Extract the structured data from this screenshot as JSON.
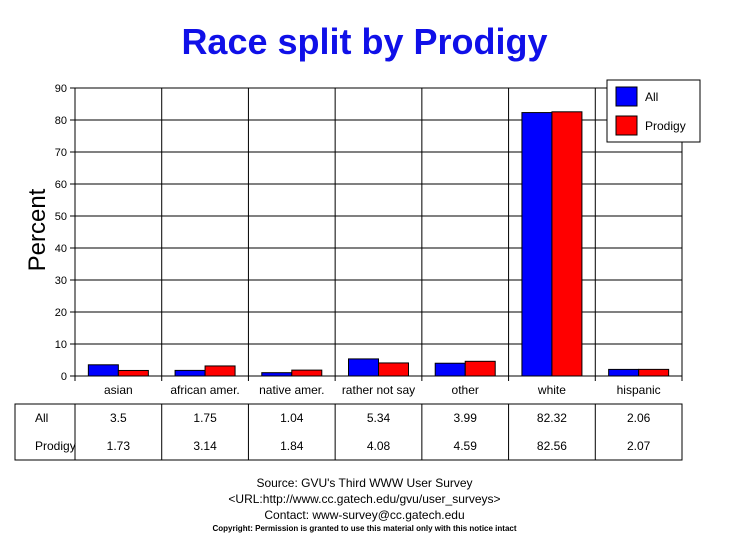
{
  "chart_data": {
    "type": "bar",
    "title": "Race split by Prodigy",
    "ylabel": "Percent",
    "xlabel": "",
    "ylim": [
      0,
      90
    ],
    "yticks": [
      0,
      10,
      20,
      30,
      40,
      50,
      60,
      70,
      80,
      90
    ],
    "grid": true,
    "legend_position": "top-right",
    "categories": [
      "asian",
      "african amer.",
      "native amer.",
      "rather not say",
      "other",
      "white",
      "hispanic"
    ],
    "series": [
      {
        "name": "All",
        "color": "#0000ff",
        "values": [
          3.5,
          1.75,
          1.04,
          5.34,
          3.99,
          82.32,
          2.06
        ],
        "labels": [
          "3.5",
          "1.75",
          "1.04",
          "5.34",
          "3.99",
          "82.32",
          "2.06"
        ]
      },
      {
        "name": "Prodigy",
        "color": "#ff0000",
        "values": [
          1.73,
          3.14,
          1.84,
          4.08,
          4.59,
          82.56,
          2.07
        ],
        "labels": [
          "1.73",
          "3.14",
          "1.84",
          "4.08",
          "4.59",
          "82.56",
          "2.07"
        ]
      }
    ]
  },
  "source": {
    "line1": "Source: GVU's Third WWW User Survey",
    "line2": "<URL:http://www.cc.gatech.edu/gvu/user_surveys>",
    "line3": "Contact: www-survey@cc.gatech.edu",
    "copyright": "Copyright: Permission is granted to use this material only with this notice intact"
  }
}
